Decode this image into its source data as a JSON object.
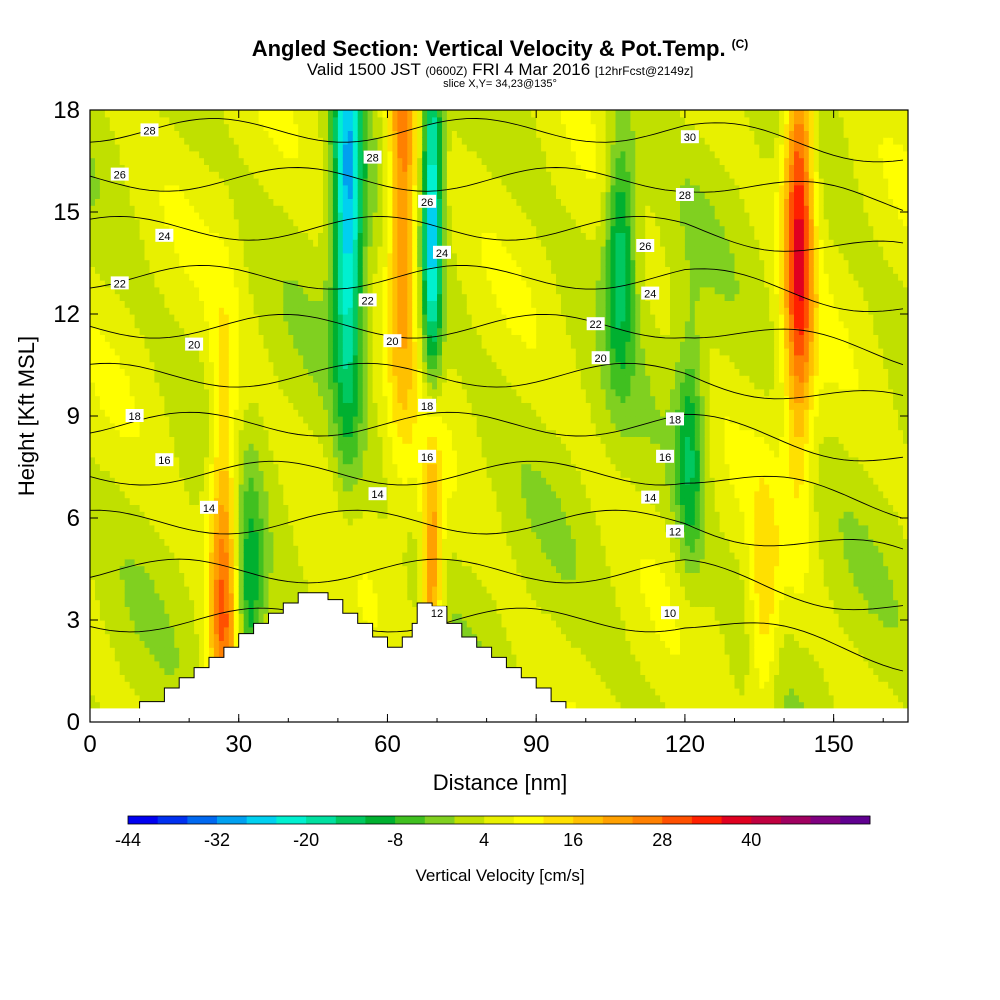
{
  "title": "Angled Section: Vertical Velocity & Pot.Temp.",
  "title_suffix": "(C)",
  "subtitle": {
    "valid": "Valid 1500 JST",
    "utc": "(0600Z)",
    "date": "FRI 4 Mar 2016",
    "forecast": "[12hrFcst@2149z]"
  },
  "slice_label": "slice X,Y= 34,23@135°",
  "chart_data": {
    "type": "heatmap",
    "xlabel": "Distance [nm]",
    "ylabel": "Height [Kft MSL]",
    "xlim": [
      0,
      165
    ],
    "ylim": [
      0,
      18
    ],
    "x_ticks": [
      0,
      30,
      60,
      90,
      120,
      150
    ],
    "y_ticks": [
      0,
      3,
      6,
      9,
      12,
      15,
      18
    ],
    "colorbar": {
      "label": "Vertical Velocity [cm/s]",
      "tick_labels": [
        -44,
        -32,
        -20,
        -8,
        4,
        16,
        28,
        40
      ],
      "bins_min": -44,
      "bin_width": 4,
      "colors": [
        "#0000f0",
        "#0030f0",
        "#0068f0",
        "#00a0f0",
        "#00d0f0",
        "#00f0d0",
        "#00e0a0",
        "#00c860",
        "#00b030",
        "#40c020",
        "#80d020",
        "#c0e000",
        "#e8f000",
        "#ffff00",
        "#ffe000",
        "#ffc000",
        "#ffa000",
        "#ff8000",
        "#ff5000",
        "#ff2000",
        "#e00020",
        "#c00040",
        "#a00060",
        "#800080",
        "#600090"
      ]
    },
    "velocity_features": [
      {
        "x": 0,
        "z": 0,
        "value": 4
      },
      {
        "x": 27,
        "z": 3.8,
        "value": 28
      },
      {
        "x": 32,
        "z": 3.3,
        "value": -12
      },
      {
        "x": 52,
        "z": 15.5,
        "value": -28
      },
      {
        "x": 63,
        "z": 16,
        "value": 28
      },
      {
        "x": 69,
        "z": 14,
        "value": -28
      },
      {
        "x": 69,
        "z": 5,
        "value": 28
      },
      {
        "x": 107,
        "z": 14,
        "value": -16
      },
      {
        "x": 121,
        "z": 8,
        "value": -12
      },
      {
        "x": 143,
        "z": 14.5,
        "value": 36
      },
      {
        "x": 136,
        "z": 3.2,
        "value": 16
      }
    ],
    "theta_contours": [
      {
        "level": 10,
        "label": "10"
      },
      {
        "level": 12,
        "label": "12"
      },
      {
        "level": 14,
        "label": "14"
      },
      {
        "level": 16,
        "label": "16"
      },
      {
        "level": 18,
        "label": "18"
      },
      {
        "level": 20,
        "label": "20"
      },
      {
        "level": 22,
        "label": "22"
      },
      {
        "level": 24,
        "label": "24"
      },
      {
        "level": 26,
        "label": "26"
      },
      {
        "level": 28,
        "label": "28"
      },
      {
        "level": 30,
        "label": "30"
      }
    ],
    "theta_labels": [
      {
        "text": "28",
        "x": 12,
        "z": 17.4
      },
      {
        "text": "26",
        "x": 6,
        "z": 16.1
      },
      {
        "text": "24",
        "x": 15,
        "z": 14.3
      },
      {
        "text": "22",
        "x": 6,
        "z": 12.9
      },
      {
        "text": "20",
        "x": 21,
        "z": 11.1
      },
      {
        "text": "18",
        "x": 9,
        "z": 9.0
      },
      {
        "text": "16",
        "x": 15,
        "z": 7.7
      },
      {
        "text": "14",
        "x": 24,
        "z": 6.3
      },
      {
        "text": "28",
        "x": 57,
        "z": 16.6
      },
      {
        "text": "26",
        "x": 68,
        "z": 15.3
      },
      {
        "text": "24",
        "x": 71,
        "z": 13.8
      },
      {
        "text": "22",
        "x": 56,
        "z": 12.4
      },
      {
        "text": "20",
        "x": 61,
        "z": 11.2
      },
      {
        "text": "18",
        "x": 68,
        "z": 9.3
      },
      {
        "text": "16",
        "x": 68,
        "z": 7.8
      },
      {
        "text": "14",
        "x": 58,
        "z": 6.7
      },
      {
        "text": "12",
        "x": 70,
        "z": 3.2
      },
      {
        "text": "30",
        "x": 121,
        "z": 17.2
      },
      {
        "text": "28",
        "x": 120,
        "z": 15.5
      },
      {
        "text": "26",
        "x": 112,
        "z": 14.0
      },
      {
        "text": "24",
        "x": 113,
        "z": 12.6
      },
      {
        "text": "22",
        "x": 102,
        "z": 11.7
      },
      {
        "text": "20",
        "x": 103,
        "z": 10.7
      },
      {
        "text": "18",
        "x": 118,
        "z": 8.9
      },
      {
        "text": "16",
        "x": 116,
        "z": 7.8
      },
      {
        "text": "14",
        "x": 113,
        "z": 6.6
      },
      {
        "text": "12",
        "x": 118,
        "z": 5.6
      },
      {
        "text": "10",
        "x": 117,
        "z": 3.2
      }
    ],
    "terrain": [
      [
        10,
        0.6
      ],
      [
        15,
        0.6
      ],
      [
        15,
        1.0
      ],
      [
        18,
        1.0
      ],
      [
        18,
        1.3
      ],
      [
        21,
        1.3
      ],
      [
        21,
        1.6
      ],
      [
        24,
        1.6
      ],
      [
        24,
        1.9
      ],
      [
        27,
        1.9
      ],
      [
        27,
        2.2
      ],
      [
        30,
        2.2
      ],
      [
        30,
        2.6
      ],
      [
        33,
        2.6
      ],
      [
        33,
        2.9
      ],
      [
        36,
        2.9
      ],
      [
        36,
        3.2
      ],
      [
        39,
        3.2
      ],
      [
        39,
        3.5
      ],
      [
        42,
        3.5
      ],
      [
        42,
        3.8
      ],
      [
        48,
        3.8
      ],
      [
        48,
        3.6
      ],
      [
        51,
        3.6
      ],
      [
        51,
        3.2
      ],
      [
        54,
        3.2
      ],
      [
        54,
        2.9
      ],
      [
        57,
        2.9
      ],
      [
        57,
        2.5
      ],
      [
        60,
        2.5
      ],
      [
        60,
        2.2
      ],
      [
        63,
        2.2
      ],
      [
        63,
        2.5
      ],
      [
        65,
        2.5
      ],
      [
        65,
        2.9
      ],
      [
        66,
        2.9
      ],
      [
        66,
        3.5
      ],
      [
        69,
        3.5
      ],
      [
        69,
        3.4
      ],
      [
        72,
        3.4
      ],
      [
        72,
        2.9
      ],
      [
        75,
        2.9
      ],
      [
        75,
        2.5
      ],
      [
        78,
        2.5
      ],
      [
        78,
        2.2
      ],
      [
        81,
        2.2
      ],
      [
        81,
        1.9
      ],
      [
        84,
        1.9
      ],
      [
        84,
        1.6
      ],
      [
        87,
        1.6
      ],
      [
        87,
        1.3
      ],
      [
        90,
        1.3
      ],
      [
        90,
        1.0
      ],
      [
        93,
        1.0
      ],
      [
        93,
        0.6
      ],
      [
        96,
        0.6
      ]
    ]
  }
}
